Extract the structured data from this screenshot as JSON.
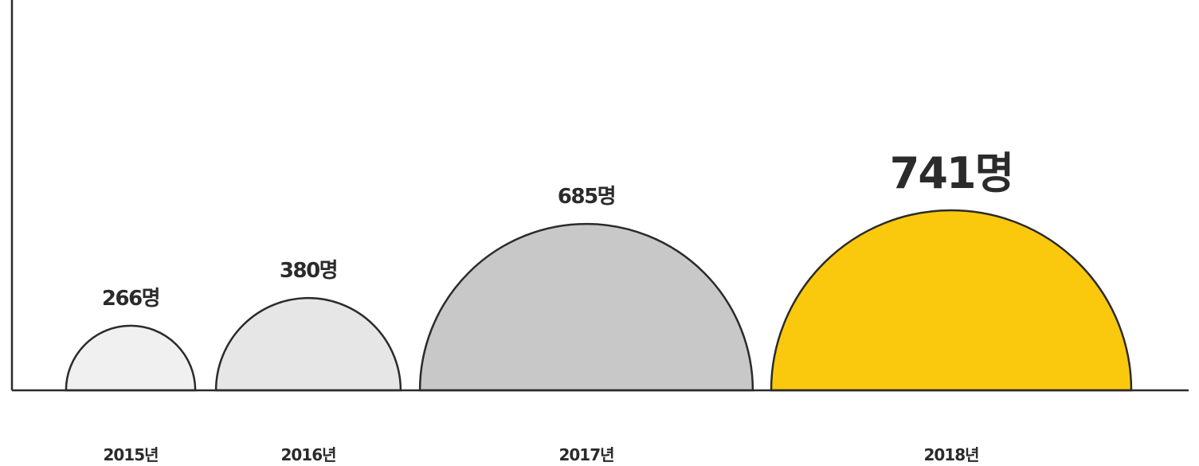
{
  "chart_data": {
    "type": "bar",
    "categories": [
      "2015년",
      "2016년",
      "2017년",
      "2018년"
    ],
    "values": [
      266,
      380,
      685,
      741
    ],
    "value_labels": [
      "266명",
      "380명",
      "685명",
      "741명"
    ],
    "highlight_index": 3,
    "colors": [
      "#f0f0f0",
      "#e6e6e6",
      "#c8c8c9",
      "#fac90e"
    ],
    "highlight_label_color": "#fac90e",
    "stroke_color": "#2b2b2b",
    "title": "",
    "xlabel": "",
    "ylabel": "",
    "grid": false,
    "legend": "none"
  }
}
